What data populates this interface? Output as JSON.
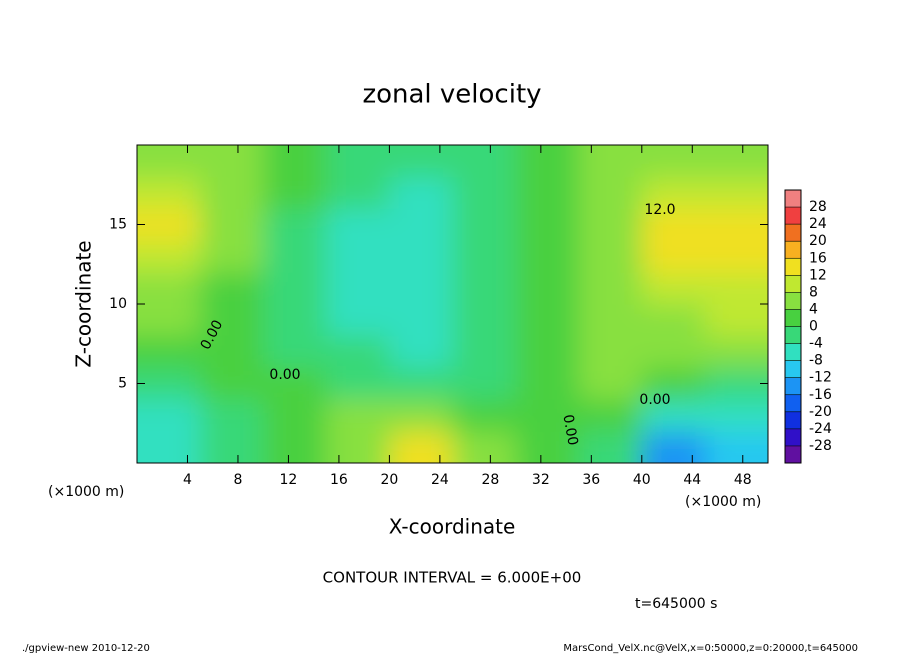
{
  "chart_data": {
    "type": "heatmap",
    "title": "zonal velocity",
    "x_label": "X-coordinate",
    "y_label": "Z-coordinate",
    "x_unit": "(×1000 m)",
    "y_unit": "(×1000 m)",
    "contour_interval": "CONTOUR INTERVAL = 6.000E+00",
    "time": "t=645000 s",
    "footer_left": "./gpview-new  2010-12-20",
    "footer_right": "MarsCond_VelX.nc@VelX,x=0:50000,z=0:20000,t=645000",
    "annotations": [
      "0.00",
      "0.00",
      "0.00",
      "0.00",
      "12.0"
    ],
    "xlim": [
      0,
      50
    ],
    "ylim": [
      0,
      20
    ],
    "xticks": [
      4,
      8,
      12,
      16,
      20,
      24,
      28,
      32,
      36,
      40,
      44,
      48
    ],
    "yticks": [
      5,
      10,
      15
    ],
    "x": [
      2.5,
      7.5,
      12.5,
      17.5,
      22.5,
      27.5,
      32.5,
      37.5,
      42.5,
      47.5
    ],
    "y": [
      1,
      3,
      5,
      7,
      9,
      11,
      13,
      15,
      17,
      19
    ],
    "values": [
      [
        -6,
        -2,
        2,
        6,
        14,
        6,
        2,
        -4,
        -14,
        -10
      ],
      [
        -6,
        -2,
        2,
        6,
        4,
        2,
        2,
        0,
        -6,
        -6
      ],
      [
        -2,
        0,
        0,
        -2,
        -2,
        -2,
        2,
        4,
        0,
        -2
      ],
      [
        2,
        2,
        -2,
        -4,
        -6,
        -4,
        0,
        4,
        4,
        6
      ],
      [
        4,
        2,
        -2,
        -6,
        -8,
        -4,
        2,
        6,
        6,
        8
      ],
      [
        6,
        2,
        -4,
        -8,
        -6,
        -2,
        2,
        6,
        8,
        8
      ],
      [
        8,
        4,
        -2,
        -8,
        -6,
        -2,
        2,
        6,
        12,
        12
      ],
      [
        12,
        4,
        -2,
        -8,
        -6,
        -4,
        0,
        6,
        14,
        14
      ],
      [
        8,
        4,
        0,
        -4,
        -6,
        -2,
        0,
        4,
        8,
        8
      ],
      [
        6,
        4,
        2,
        -2,
        -4,
        -2,
        2,
        4,
        6,
        6
      ]
    ],
    "clim": [
      -32,
      32
    ],
    "colorbar_ticks": [
      28,
      24,
      20,
      16,
      12,
      8,
      4,
      0,
      -4,
      -8,
      -12,
      -16,
      -20,
      -24,
      -28
    ],
    "colors": [
      "#6010a0",
      "#3010c8",
      "#1030e0",
      "#1060f0",
      "#1c94f4",
      "#28c8f0",
      "#30e0c0",
      "#38d878",
      "#48d040",
      "#88e040",
      "#c0e830",
      "#f0e020",
      "#f8b020",
      "#f07020",
      "#f04040",
      "#f08080"
    ]
  }
}
